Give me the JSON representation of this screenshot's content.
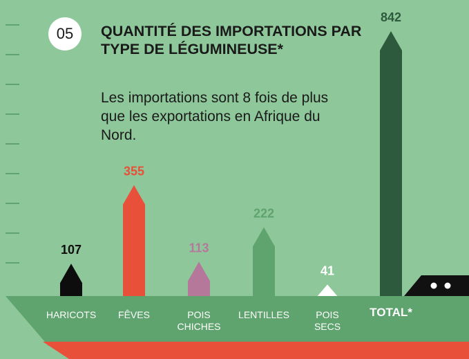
{
  "badge": "05",
  "chart_data": {
    "type": "arrow-bar",
    "title": "QUANTITÉ DES IMPORTATIONS PAR TYPE DE LÉGUMINEUSE*",
    "subtitle": "Les importations sont 8 fois de plus que les exportations en Afrique du Nord.",
    "categories": [
      "HARICOTS",
      "FÊVES",
      "POIS CHICHES",
      "LENTILLES",
      "POIS SECS",
      "TOTAL*"
    ],
    "values": [
      107,
      355,
      113,
      222,
      41,
      842
    ],
    "colors": [
      "#0d0d0d",
      "#e8503a",
      "#b5789a",
      "#5fa36e",
      "#ffffff",
      "#2d5a3c"
    ]
  }
}
